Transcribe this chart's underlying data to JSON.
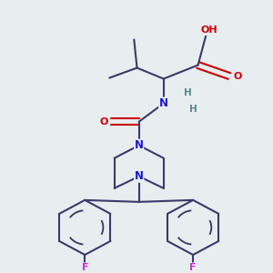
{
  "bg_color": "#e8edf0",
  "bond_color": "#3a3a6a",
  "bond_lw": 1.5,
  "atom_colors": {
    "O": "#cc0000",
    "N": "#1a1acc",
    "F": "#cc33cc",
    "H": "#5a8888",
    "C": "#3a3a6a"
  },
  "figsize": [
    3.0,
    3.0
  ],
  "dpi": 100
}
